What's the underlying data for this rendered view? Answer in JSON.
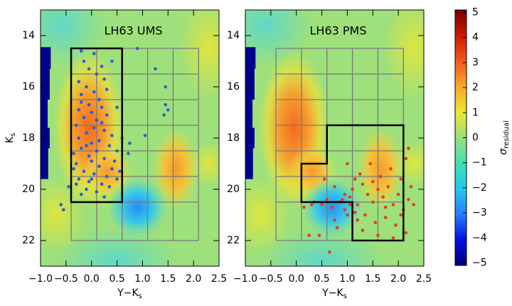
{
  "chart_data": [
    {
      "type": "scatter",
      "title": "LH63 UMS",
      "xlabel": "Y−K",
      "xlabel_sub": "s",
      "ylabel": "K",
      "ylabel_sub": "s",
      "xlim": [
        -1.0,
        2.5
      ],
      "ylim": [
        23,
        13
      ],
      "xticks": [
        {
          "value": -1.0,
          "label": "−1.0"
        },
        {
          "value": -0.5,
          "label": "−0.5"
        },
        {
          "value": 0.0,
          "label": "0.0"
        },
        {
          "value": 0.5,
          "label": "0.5"
        },
        {
          "value": 1.0,
          "label": "1.0"
        },
        {
          "value": 1.5,
          "label": "1.5"
        },
        {
          "value": 2.0,
          "label": "2.0"
        },
        {
          "value": 2.5,
          "label": "2.5"
        }
      ],
      "yticks": [
        14,
        16,
        18,
        20,
        22
      ],
      "grid_x": [
        -0.4,
        0.1,
        0.6,
        1.1,
        1.6,
        2.1
      ],
      "grid_y": [
        14.5,
        15.5,
        16.5,
        17.5,
        18.5,
        19.5,
        20.5,
        22
      ],
      "selection": [
        [
          -0.4,
          14.5
        ],
        [
          0.6,
          14.5
        ],
        [
          0.6,
          20.5
        ],
        [
          -0.4,
          20.5
        ]
      ],
      "color": "#2a5fc8",
      "x": [
        -0.2,
        -0.15,
        -0.05,
        0.1,
        0.2,
        -0.25,
        -0.1,
        0.05,
        -0.2,
        0.15,
        -0.05,
        0.2,
        -0.25,
        0.0,
        0.3,
        -0.15,
        0.1,
        -0.3,
        0.05,
        0.25,
        -0.1,
        0.4,
        -0.25,
        0.15,
        0.0,
        0.35,
        -0.2,
        0.1,
        0.5,
        -0.35,
        -0.05,
        0.25,
        0.0,
        -0.3,
        0.15,
        0.4,
        -0.15,
        0.05,
        0.3,
        -0.25,
        -0.05,
        0.2,
        0.5,
        -0.35,
        -0.1,
        0.1,
        -0.2,
        0.35,
        0.25,
        -0.3,
        0.0,
        0.45,
        0.55,
        -0.1,
        0.2,
        -0.2,
        0.3,
        0.5,
        0.25,
        0.6,
        0.9,
        1.25,
        1.45,
        1.45,
        1.5,
        1.42,
        1.05,
        0.75,
        0.72,
        -0.6,
        -0.55,
        -0.45,
        0.4,
        0.05
      ],
      "y": [
        14.6,
        15.0,
        15.3,
        15.5,
        15.2,
        15.8,
        16.0,
        16.2,
        16.3,
        16.5,
        16.7,
        16.8,
        16.9,
        17.0,
        17.1,
        17.2,
        17.3,
        17.5,
        17.6,
        17.7,
        17.8,
        17.9,
        18.0,
        18.1,
        18.2,
        18.3,
        18.4,
        18.5,
        18.5,
        18.6,
        18.7,
        18.8,
        18.9,
        19.0,
        19.1,
        19.2,
        19.3,
        19.4,
        19.5,
        19.6,
        19.7,
        19.8,
        19.6,
        19.2,
        20.0,
        20.1,
        20.2,
        19.9,
        20.3,
        19.8,
        19.6,
        18.9,
        19.3,
        18.3,
        17.4,
        16.6,
        16.1,
        16.8,
        15.7,
        18.0,
        14.5,
        15.3,
        16.0,
        16.7,
        16.9,
        17.1,
        17.9,
        18.2,
        18.6,
        20.6,
        20.8,
        19.9,
        15.0,
        14.7
      ]
    },
    {
      "type": "scatter",
      "title": "LH63 PMS",
      "xlabel": "Y−K",
      "xlabel_sub": "s",
      "xlim": [
        -1.0,
        2.5
      ],
      "ylim": [
        23,
        13
      ],
      "xticks": [
        {
          "value": -1.0,
          "label": "−1.0"
        },
        {
          "value": -0.5,
          "label": "−0.5"
        },
        {
          "value": 0.0,
          "label": "0.0"
        },
        {
          "value": 0.5,
          "label": "0.5"
        },
        {
          "value": 1.0,
          "label": "1.0"
        },
        {
          "value": 1.5,
          "label": "1.5"
        },
        {
          "value": 2.0,
          "label": "2.0"
        },
        {
          "value": 2.5,
          "label": "2.5"
        }
      ],
      "yticks": [
        14,
        16,
        18,
        20,
        22
      ],
      "grid_x": [
        -0.4,
        0.1,
        0.6,
        1.1,
        1.6,
        2.1
      ],
      "grid_y": [
        14.5,
        15.5,
        16.5,
        17.5,
        18.5,
        19.5,
        20.5,
        22
      ],
      "selection": [
        [
          0.1,
          20.5
        ],
        [
          0.1,
          19
        ],
        [
          0.6,
          19
        ],
        [
          0.6,
          17.5
        ],
        [
          2.1,
          17.5
        ],
        [
          2.1,
          22
        ],
        [
          1.1,
          22
        ],
        [
          1.1,
          20.5
        ]
      ],
      "color": "#e0401c",
      "x": [
        0.25,
        0.45,
        0.8,
        1.0,
        0.55,
        0.75,
        0.95,
        0.6,
        0.35,
        0.5,
        0.7,
        0.85,
        1.05,
        1.2,
        1.1,
        1.3,
        1.4,
        1.5,
        1.6,
        1.7,
        1.8,
        1.9,
        2.0,
        2.1,
        2.2,
        2.3,
        1.15,
        1.25,
        1.45,
        1.65,
        1.85,
        2.05,
        2.15,
        2.2,
        2.25,
        1.0,
        1.2,
        1.35,
        1.55,
        1.75,
        1.95,
        2.05,
        1.3,
        1.6,
        1.9,
        2.15,
        0.95,
        0.75,
        0.3,
        0.15,
        0.65,
        1.05,
        0.9,
        1.15,
        1.5,
        1.75
      ],
      "y": [
        21.8,
        21.8,
        21.5,
        19.0,
        19.6,
        19.9,
        20.2,
        20.4,
        20.5,
        20.6,
        20.7,
        20.5,
        20.3,
        20.6,
        20.0,
        19.8,
        20.2,
        20.5,
        20.0,
        20.3,
        19.9,
        20.6,
        20.2,
        20.8,
        20.4,
        20.6,
        19.6,
        19.4,
        19.0,
        19.5,
        19.2,
        19.6,
        18.8,
        18.4,
        19.9,
        21.0,
        21.2,
        21.0,
        21.3,
        21.1,
        21.4,
        21.0,
        21.6,
        21.8,
        21.9,
        21.7,
        20.8,
        21.2,
        20.6,
        20.7,
        22.45,
        20.6,
        20.4,
        20.9,
        19.7,
        20.7
      ]
    }
  ],
  "colorbar": {
    "label": "σ",
    "label_sub": "residual",
    "lim": [
      -5.1,
      5.1
    ],
    "ticks": [
      {
        "value": -5,
        "label": "−5"
      },
      {
        "value": -4,
        "label": "−4"
      },
      {
        "value": -3,
        "label": "−3"
      },
      {
        "value": -2,
        "label": "−2"
      },
      {
        "value": -1,
        "label": "−1"
      },
      0,
      1,
      2,
      3,
      4,
      5
    ]
  }
}
